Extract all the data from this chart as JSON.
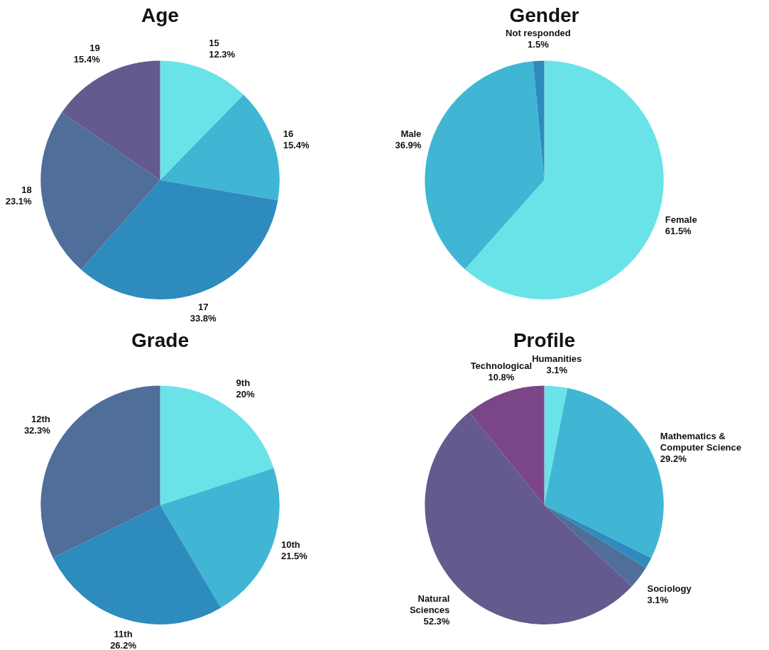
{
  "chart_data": [
    {
      "type": "pie",
      "title": "Age",
      "legend": false,
      "categories": [
        "15",
        "16",
        "17",
        "18",
        "19"
      ],
      "values": [
        12.3,
        15.4,
        33.8,
        23.1,
        15.4
      ],
      "value_labels": [
        "12.3%",
        "15.4%",
        "33.8%",
        "23.1%",
        "15.4%"
      ],
      "colors": [
        "#6ae3e8",
        "#40b6d4",
        "#2e8bbd",
        "#4f6f9a",
        "#645a8e"
      ]
    },
    {
      "type": "pie",
      "title": "Gender",
      "legend": false,
      "categories": [
        "Female",
        "Male",
        "Not responded"
      ],
      "values": [
        61.5,
        36.9,
        1.5
      ],
      "value_labels": [
        "61.5%",
        "36.9%",
        "1.5%"
      ],
      "colors": [
        "#6ae3e8",
        "#40b6d4",
        "#2e8bbd"
      ]
    },
    {
      "type": "pie",
      "title": "Grade",
      "legend": false,
      "categories": [
        "9th",
        "10th",
        "11th",
        "12th"
      ],
      "values": [
        20,
        21.5,
        26.2,
        32.3
      ],
      "value_labels": [
        "20%",
        "21.5%",
        "26.2%",
        "32.3%"
      ],
      "colors": [
        "#6ae3e8",
        "#40b6d4",
        "#2e8bbd",
        "#4f6f9a"
      ]
    },
    {
      "type": "pie",
      "title": "Profile",
      "legend": false,
      "categories": [
        "Humanities",
        "Mathematics & Computer Science",
        null,
        "Sociology",
        "Natural Sciences",
        "Technological"
      ],
      "values": [
        3.1,
        29.2,
        1.5,
        3.1,
        52.3,
        10.8
      ],
      "value_labels": [
        "3.1%",
        "29.2%",
        null,
        "3.1%",
        "52.3%",
        "10.8%"
      ],
      "colors": [
        "#6ae3e8",
        "#40b6d4",
        "#2e8bbd",
        "#4f6f9a",
        "#645a8e",
        "#7b4688"
      ]
    }
  ]
}
